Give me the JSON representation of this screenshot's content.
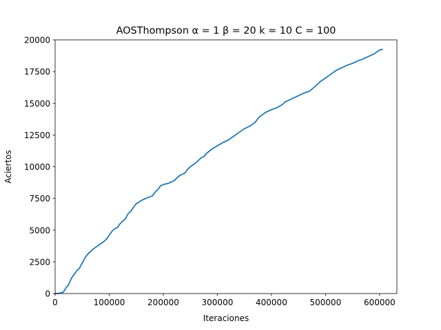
{
  "chart_data": {
    "type": "line",
    "title": "AOSThompson α = 1 β = 20 k = 10 C = 100",
    "xlabel": "Iteraciones",
    "ylabel": "Aciertos",
    "xlim": [
      0,
      632000
    ],
    "ylim": [
      0,
      20000
    ],
    "grid": false,
    "legend": "none",
    "x_ticks": [
      0,
      100000,
      200000,
      300000,
      400000,
      500000,
      600000
    ],
    "x_tick_labels": [
      "0",
      "100000",
      "200000",
      "300000",
      "400000",
      "500000",
      "600000"
    ],
    "y_ticks": [
      0,
      2500,
      5000,
      7500,
      10000,
      12500,
      15000,
      17500,
      20000
    ],
    "y_tick_labels": [
      "0",
      "2500",
      "5000",
      "7500",
      "10000",
      "12500",
      "15000",
      "17500",
      "20000"
    ],
    "colors": {
      "series": "#1f77b4",
      "axes": "#000000",
      "background": "#ffffff"
    },
    "series": [
      {
        "x": [
          0,
          5000,
          10000,
          15000,
          20000,
          25000,
          30000,
          35000,
          40000,
          45000,
          50000,
          55000,
          60000,
          70000,
          80000,
          90000,
          95000,
          100000,
          105000,
          110000,
          115000,
          120000,
          125000,
          130000,
          135000,
          140000,
          145000,
          150000,
          155000,
          160000,
          170000,
          180000,
          185000,
          190000,
          195000,
          200000,
          210000,
          220000,
          225000,
          230000,
          240000,
          245000,
          250000,
          260000,
          265000,
          270000,
          275000,
          280000,
          290000,
          300000,
          310000,
          320000,
          330000,
          340000,
          350000,
          360000,
          370000,
          375000,
          380000,
          390000,
          400000,
          410000,
          420000,
          425000,
          430000,
          440000,
          450000,
          460000,
          470000,
          480000,
          490000,
          500000,
          510000,
          520000,
          530000,
          540000,
          550000,
          555000,
          560000,
          570000,
          580000,
          590000,
          595000,
          600000,
          605000
        ],
        "y": [
          0,
          0,
          50,
          100,
          450,
          700,
          1200,
          1500,
          1800,
          2000,
          2400,
          2800,
          3100,
          3500,
          3800,
          4100,
          4300,
          4600,
          4900,
          5100,
          5200,
          5500,
          5700,
          5900,
          6300,
          6500,
          6800,
          7100,
          7200,
          7350,
          7550,
          7700,
          8000,
          8200,
          8500,
          8600,
          8700,
          8900,
          9100,
          9300,
          9500,
          9800,
          10000,
          10300,
          10500,
          10700,
          10800,
          11050,
          11400,
          11650,
          11900,
          12100,
          12400,
          12700,
          13000,
          13200,
          13500,
          13800,
          14000,
          14300,
          14500,
          14650,
          14900,
          15100,
          15200,
          15400,
          15600,
          15800,
          15950,
          16300,
          16700,
          17000,
          17300,
          17600,
          17800,
          18000,
          18150,
          18250,
          18350,
          18500,
          18700,
          18900,
          19050,
          19200,
          19250
        ]
      }
    ]
  }
}
